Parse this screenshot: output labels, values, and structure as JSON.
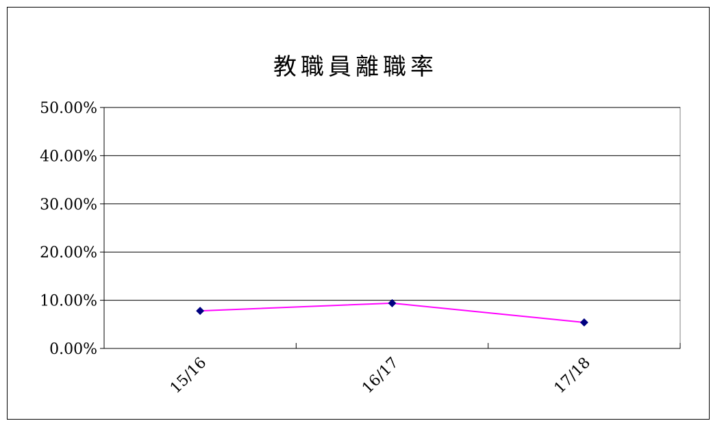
{
  "chart_data": {
    "type": "line",
    "title": "教職員離職率",
    "categories": [
      "15/16",
      "16/17",
      "17/18"
    ],
    "series": [
      {
        "values": [
          0.078,
          0.094,
          0.054
        ],
        "line_color": "#ff00ff",
        "marker_color": "#000080"
      }
    ],
    "ylim": [
      0,
      0.5
    ],
    "yticks": [
      0,
      0.1,
      0.2,
      0.3,
      0.4,
      0.5
    ],
    "ytick_labels": [
      "0.00%",
      "10.00%",
      "20.00%",
      "30.00%",
      "40.00%",
      "50.00%"
    ],
    "grid": true,
    "legend": "none"
  }
}
